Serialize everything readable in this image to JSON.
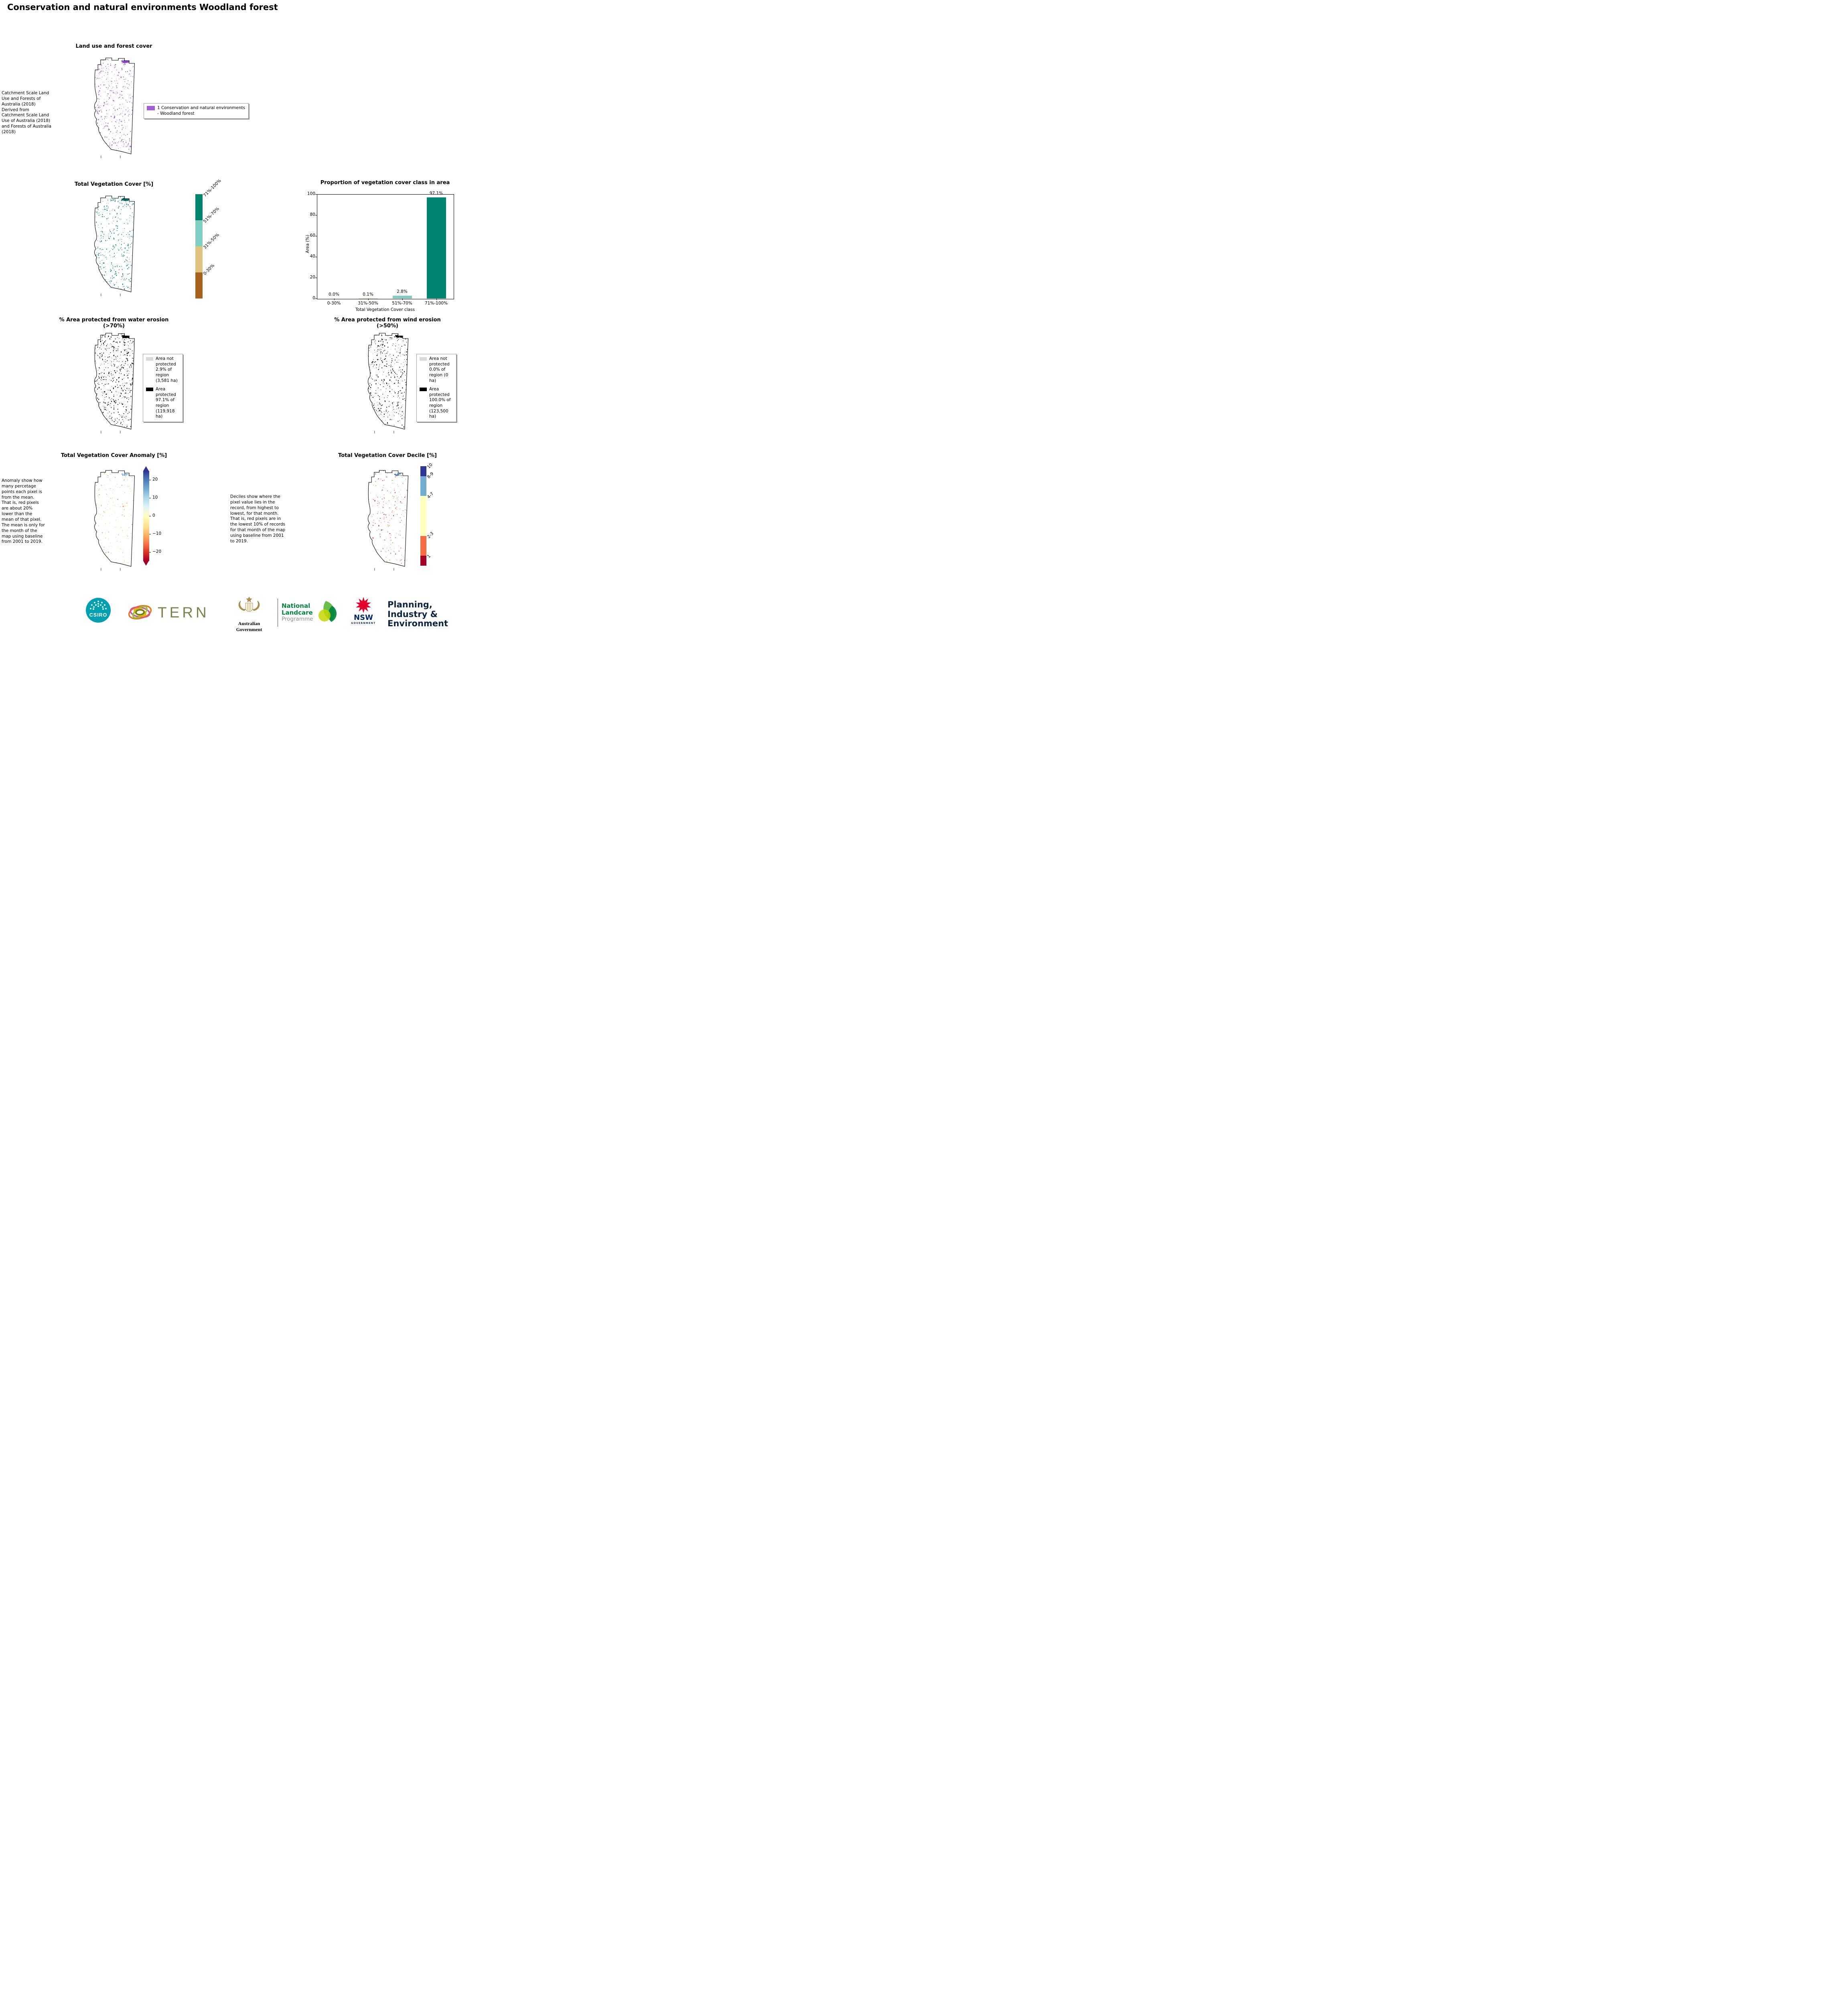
{
  "page_title": "Conservation and natural environments Woodland forest",
  "landuse": {
    "title": "Land use and forest cover",
    "caption": "Catchment Scale Land Use and Forests of Australia (2018) Derived from Catchment Scale Land Use of Australia (2018) and Forests of Australia (2018)",
    "legend_label": "1 Conservation and natural environments - Woodland forest",
    "legend_color": "#a25dd8"
  },
  "vegcover": {
    "title": "Total Vegetation Cover [%]",
    "classes": [
      {
        "label": "71%-100%",
        "color": "#018571"
      },
      {
        "label": "51%-70%",
        "color": "#80cdc1"
      },
      {
        "label": "31%-50%",
        "color": "#dfc27d"
      },
      {
        "label": "0-30%",
        "color": "#a6611a"
      }
    ]
  },
  "chart_data": {
    "type": "bar",
    "title": "Proportion of vegetation cover class in area",
    "categories": [
      "0-30%",
      "31%-50%",
      "51%-70%",
      "71%-100%"
    ],
    "values": [
      0.0,
      0.1,
      2.8,
      97.1
    ],
    "bar_labels": [
      "0.0%",
      "0.1%",
      "2.8%",
      "97.1%"
    ],
    "bar_colors": [
      "#a6611a",
      "#dfc27d",
      "#80cdc1",
      "#018571"
    ],
    "xlabel": "Total Vegetation Cover class",
    "ylabel": "Area (%)",
    "ylim": [
      0,
      100
    ],
    "yticks": [
      0,
      20,
      40,
      60,
      80,
      100
    ],
    "grid": false,
    "legend_position": "none"
  },
  "water": {
    "title": "% Area protected from water erosion (>70%)",
    "legend": [
      {
        "label": "Area not protected 2.9% of region (3,581 ha)",
        "color": "#d9d9d9"
      },
      {
        "label": "Area protected 97.1% of region (119,918 ha)",
        "color": "#000000"
      }
    ]
  },
  "wind": {
    "title": "% Area protected from wind erosion (>50%)",
    "legend": [
      {
        "label": "Area not protected 0.0% of region (0 ha)",
        "color": "#d9d9d9"
      },
      {
        "label": "Area protected 100.0% of region (123,500 ha)",
        "color": "#000000"
      }
    ]
  },
  "anomaly": {
    "title": "Total Vegetation Cover Anomaly [%]",
    "caption": "Anomaly show how many percetage points each pixel is from the mean. That is, red pixels are about 20% lower than the mean of that pixel. The mean is only for the month of the map using baseline from 2001 to 2019.",
    "ticks": [
      "20",
      "10",
      "0",
      "−10",
      "−20"
    ],
    "colormap": {
      "top": "#313695",
      "middle": "#ffffbf",
      "bottom": "#a50026"
    }
  },
  "decile": {
    "title": "Total Vegetation Cover Decile [%]",
    "caption": "Deciles show where the pixel value lies in the record, from highest to lowest, for that month. That is, red pixels are in the lowest 10% of records for that month of the map using baseline from 2001 to 2019.",
    "classes": [
      {
        "label": "10",
        "color": "#313695"
      },
      {
        "label": "8-9",
        "color": "#74add1"
      },
      {
        "label": "4-7",
        "color": "#ffffbf"
      },
      {
        "label": "2-3",
        "color": "#f46d43"
      },
      {
        "label": "1",
        "color": "#a50026"
      }
    ]
  },
  "footer": {
    "csiro": "CSIRO",
    "tern": "TERN",
    "ausgov": "Australian Government",
    "landcare_line1": "National",
    "landcare_line2": "Landcare",
    "landcare_line3": "Programme",
    "nsw": "NSW",
    "nsw_sub": "GOVERNMENT",
    "pie_line1": "Planning,",
    "pie_line2": "Industry &",
    "pie_line3": "Environment"
  }
}
